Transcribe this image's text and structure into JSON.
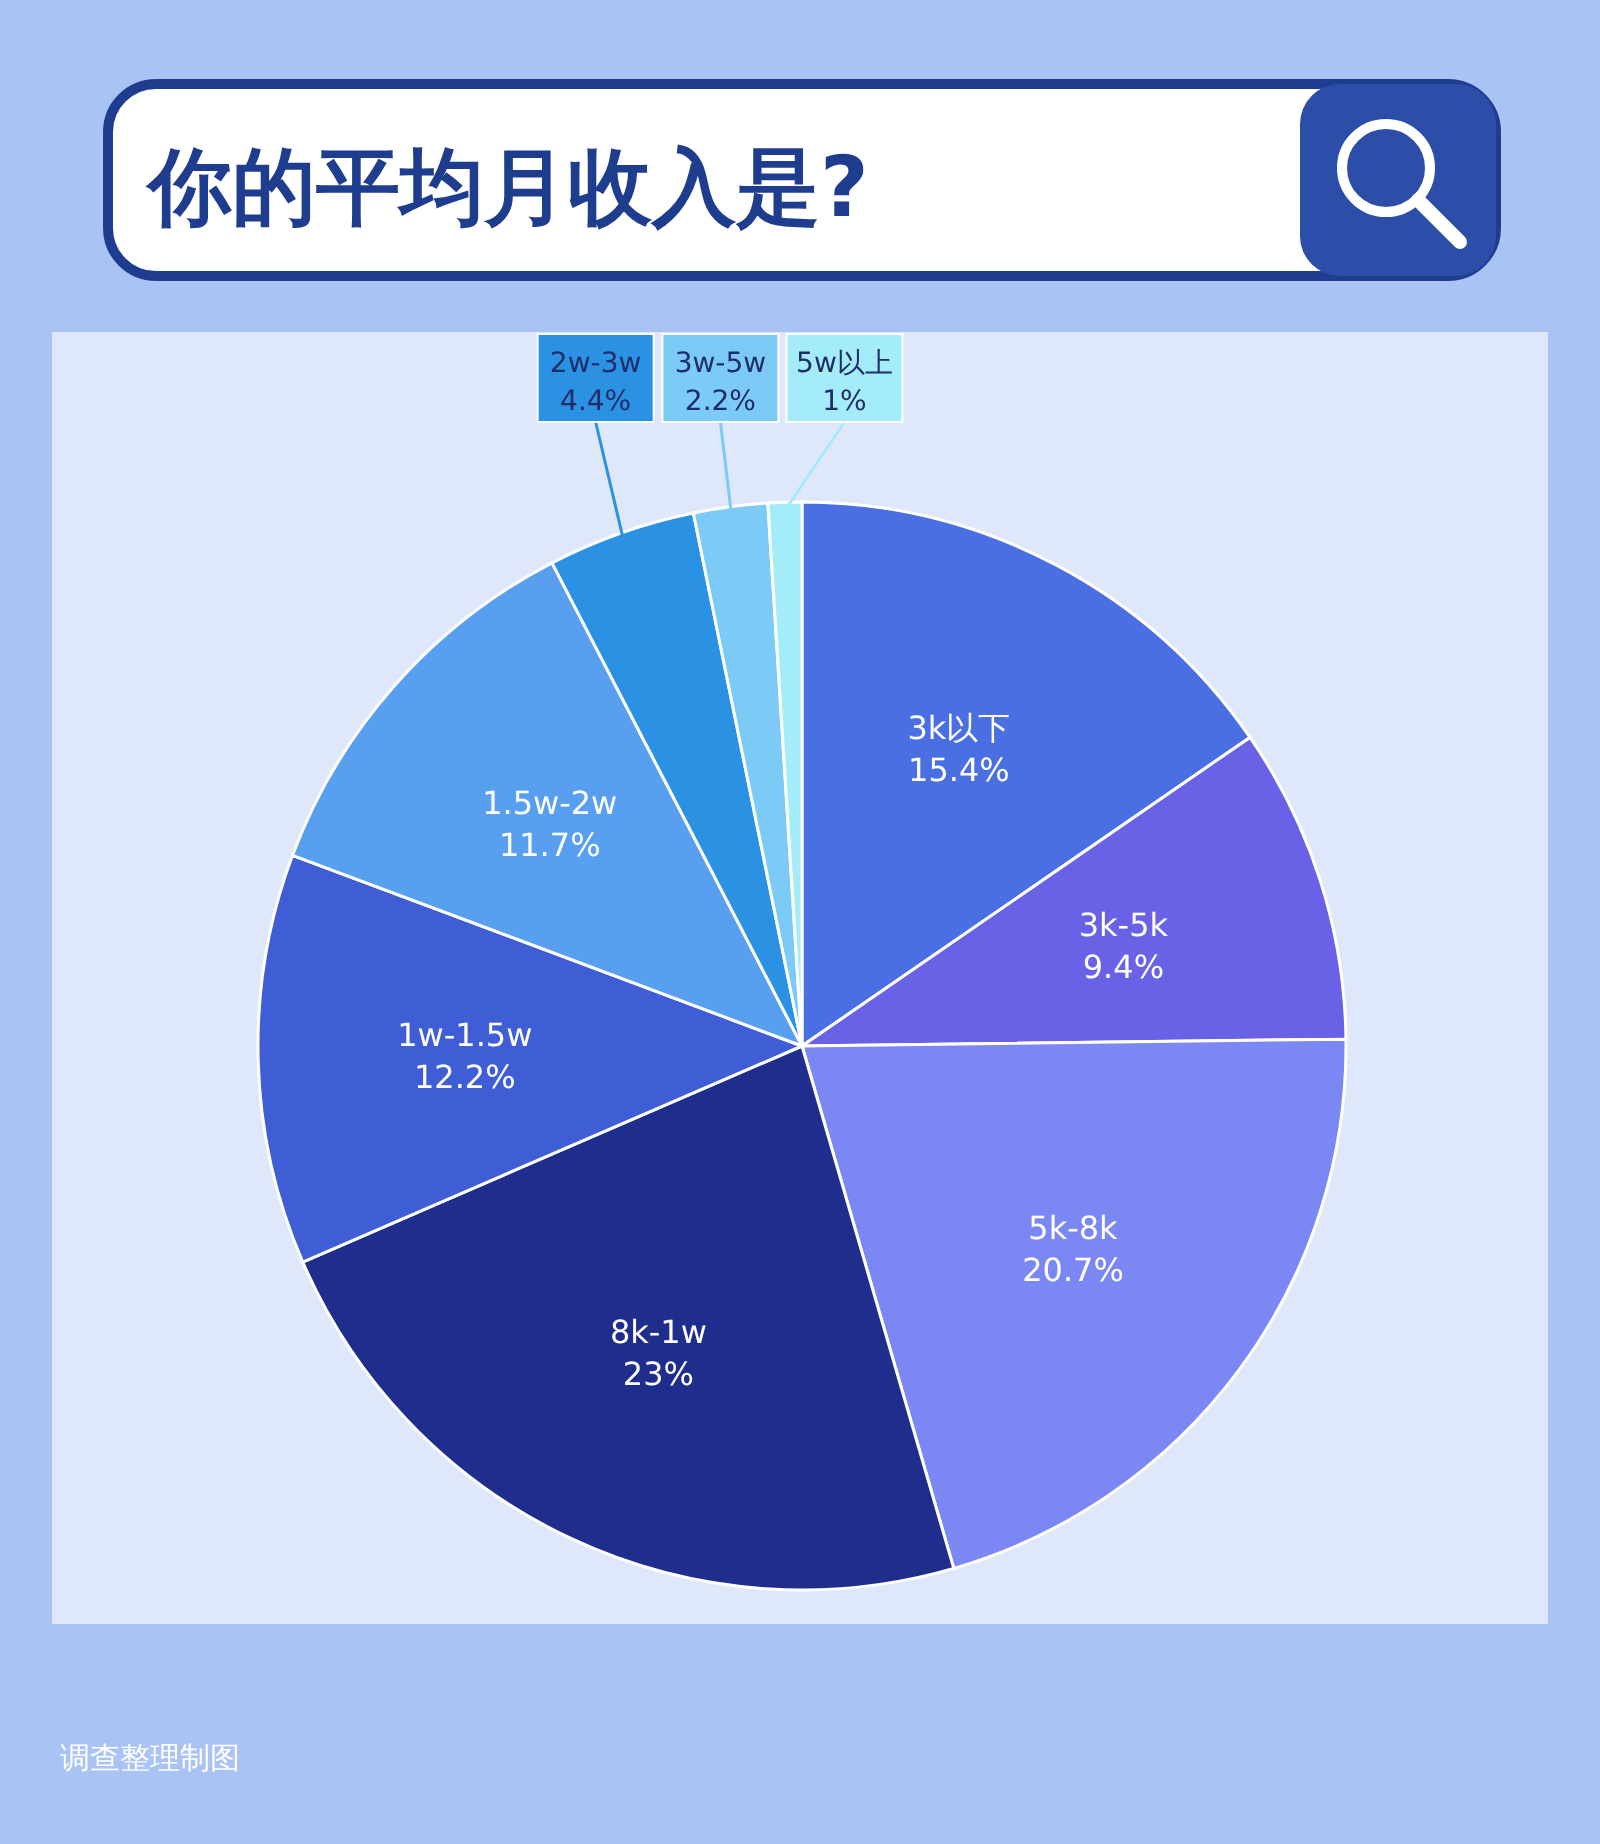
{
  "chart_data": {
    "type": "pie",
    "title": "你的平均月收入是?",
    "categories": [
      "3k以下",
      "3k-5k",
      "5k-8k",
      "8k-1w",
      "1w-1.5w",
      "1.5w-2w",
      "2w-3w",
      "3w-5w",
      "5w以上"
    ],
    "values": [
      15.4,
      9.4,
      20.7,
      23,
      12.2,
      11.7,
      4.4,
      2.2,
      1
    ],
    "colors": [
      "#4a6fe3",
      "#6a62e6",
      "#7b87f3",
      "#1f2e8c",
      "#3f5ed6",
      "#58a0ef",
      "#2b91e3",
      "#7ccaf6",
      "#a5ecfb"
    ],
    "value_labels": [
      "15.4%",
      "9.4%",
      "20.7%",
      "23%",
      "12.2%",
      "11.7%",
      "4.4%",
      "2.2%",
      "1%"
    ],
    "annotations": [
      "调查整理制图"
    ]
  }
}
